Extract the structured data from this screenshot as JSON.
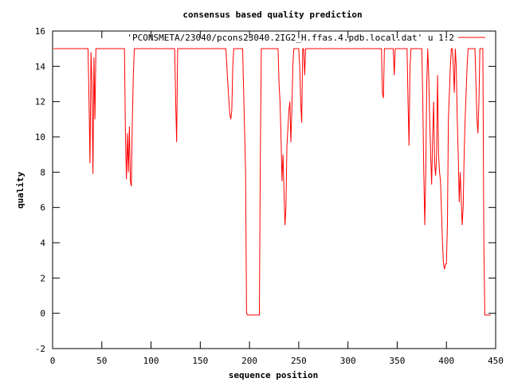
{
  "chart_data": {
    "type": "line",
    "title": "consensus based quality prediction",
    "xlabel": "sequence position",
    "ylabel": "quality",
    "xlim": [
      0,
      450
    ],
    "ylim": [
      -2,
      16
    ],
    "x_ticks": [
      0,
      50,
      100,
      150,
      200,
      250,
      300,
      350,
      400,
      450
    ],
    "y_ticks": [
      -2,
      0,
      2,
      4,
      6,
      8,
      10,
      12,
      14,
      16
    ],
    "grid": false,
    "legend_position": "top-right",
    "series": [
      {
        "name": "'PCONSMETA/23040/pcons23040.2IG2_H.ffas.4.pdb.local.dat' u 1:2",
        "color": "#ff0000",
        "points": [
          [
            1,
            15
          ],
          [
            36,
            15
          ],
          [
            37,
            12
          ],
          [
            38,
            8.5
          ],
          [
            39,
            14.8
          ],
          [
            40,
            13
          ],
          [
            41,
            7.9
          ],
          [
            42,
            14.5
          ],
          [
            43,
            11
          ],
          [
            44,
            15
          ],
          [
            73,
            15
          ],
          [
            74,
            10
          ],
          [
            75,
            7.6
          ],
          [
            76,
            10.2
          ],
          [
            77,
            8
          ],
          [
            78,
            10.6
          ],
          [
            79,
            7.5
          ],
          [
            80,
            7.2
          ],
          [
            81,
            11
          ],
          [
            82,
            13.5
          ],
          [
            83,
            15
          ],
          [
            124,
            15
          ],
          [
            125,
            12
          ],
          [
            126,
            9.7
          ],
          [
            127,
            15
          ],
          [
            176,
            15
          ],
          [
            178,
            13
          ],
          [
            179,
            12.1
          ],
          [
            180,
            11.3
          ],
          [
            181,
            11
          ],
          [
            182,
            11.5
          ],
          [
            183,
            14
          ],
          [
            184,
            15
          ],
          [
            193,
            15
          ],
          [
            196,
            8
          ],
          [
            197,
            0
          ],
          [
            198,
            -0.1
          ],
          [
            210,
            -0.1
          ],
          [
            211,
            9
          ],
          [
            212,
            15
          ],
          [
            229,
            15
          ],
          [
            230,
            13
          ],
          [
            231,
            12
          ],
          [
            232,
            10
          ],
          [
            233,
            7.5
          ],
          [
            234,
            9
          ],
          [
            235,
            7
          ],
          [
            236,
            5
          ],
          [
            237,
            6
          ],
          [
            238,
            9.5
          ],
          [
            239,
            10.5
          ],
          [
            240,
            11.5
          ],
          [
            241,
            12
          ],
          [
            242,
            9.7
          ],
          [
            243,
            11.5
          ],
          [
            244,
            14
          ],
          [
            245,
            15
          ],
          [
            250,
            15
          ],
          [
            251,
            14
          ],
          [
            252,
            12
          ],
          [
            253,
            10.8
          ],
          [
            254,
            15
          ],
          [
            255,
            15
          ],
          [
            256,
            13.5
          ],
          [
            257,
            15
          ],
          [
            334,
            15
          ],
          [
            335,
            12.5
          ],
          [
            336,
            12.2
          ],
          [
            337,
            15
          ],
          [
            346,
            15
          ],
          [
            347,
            13.5
          ],
          [
            348,
            15
          ],
          [
            360,
            15
          ],
          [
            361,
            12
          ],
          [
            362,
            9.5
          ],
          [
            363,
            14
          ],
          [
            364,
            15
          ],
          [
            375,
            15
          ],
          [
            376,
            12
          ],
          [
            377,
            8
          ],
          [
            378,
            5
          ],
          [
            379,
            8
          ],
          [
            380,
            13
          ],
          [
            381,
            15
          ],
          [
            382,
            13.5
          ],
          [
            383,
            11
          ],
          [
            384,
            9
          ],
          [
            385,
            7.3
          ],
          [
            386,
            10
          ],
          [
            387,
            12
          ],
          [
            388,
            8.5
          ],
          [
            389,
            7.8
          ],
          [
            390,
            9
          ],
          [
            391,
            13.5
          ],
          [
            392,
            9
          ],
          [
            393,
            8
          ],
          [
            394,
            7.5
          ],
          [
            396,
            4
          ],
          [
            397,
            2.8
          ],
          [
            398,
            2.5
          ],
          [
            399,
            2.8
          ],
          [
            400,
            2.8
          ],
          [
            401,
            5
          ],
          [
            402,
            11
          ],
          [
            403,
            12.5
          ],
          [
            404,
            14
          ],
          [
            405,
            15
          ],
          [
            406,
            15
          ],
          [
            407,
            14
          ],
          [
            408,
            12.5
          ],
          [
            409,
            15
          ],
          [
            410,
            14
          ],
          [
            411,
            11
          ],
          [
            412,
            9
          ],
          [
            413,
            6.3
          ],
          [
            414,
            8
          ],
          [
            415,
            6.5
          ],
          [
            416,
            5
          ],
          [
            417,
            6
          ],
          [
            418,
            9
          ],
          [
            419,
            11
          ],
          [
            420,
            12.5
          ],
          [
            421,
            14
          ],
          [
            422,
            15
          ],
          [
            429,
            15
          ],
          [
            430,
            13
          ],
          [
            431,
            11
          ],
          [
            432,
            10.2
          ],
          [
            433,
            12
          ],
          [
            434,
            15
          ],
          [
            437,
            15
          ],
          [
            438,
            4
          ],
          [
            439,
            -0.1
          ],
          [
            445,
            -0.1
          ]
        ]
      }
    ]
  }
}
